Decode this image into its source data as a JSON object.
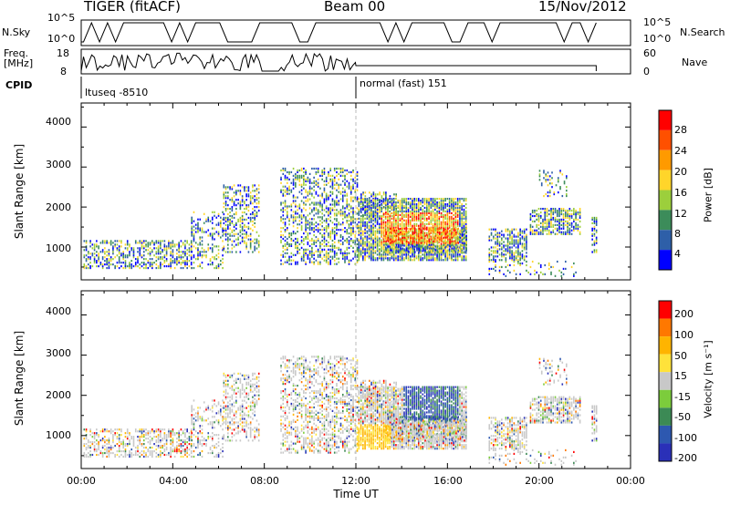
{
  "header": {
    "radar": "TIGER (fitACF)",
    "beam": "Beam 00",
    "date": "15/Nov/2012"
  },
  "top_panels": {
    "nsky_label": "N.Sky",
    "nsky_ticks": [
      "10^5",
      "10^0"
    ],
    "nsearch_label": "N.Search",
    "nsearch_ticks": [
      "10^5",
      "10^0"
    ],
    "freq_label_1": "Freq.",
    "freq_label_2": "[MHz]",
    "freq_ticks": [
      "18",
      "8"
    ],
    "nave_label": "Nave",
    "nave_ticks": [
      "60",
      "0"
    ],
    "cpid_label": "CPID",
    "cpid_segments": [
      {
        "label": "ltuseq -8510",
        "start_hour": 0,
        "end_hour": 12
      },
      {
        "label": "normal (fast) 151",
        "start_hour": 12,
        "end_hour": 24
      }
    ]
  },
  "colorbars": {
    "power": {
      "label": "Power [dB]",
      "ticks": [
        "28",
        "24",
        "20",
        "16",
        "12",
        "8",
        "4"
      ],
      "colors": [
        "#0000ff",
        "#2e5fa8",
        "#3c8c5a",
        "#9ccf3c",
        "#ffd52a",
        "#ff9a00",
        "#ff5000",
        "#ff0000"
      ]
    },
    "velocity": {
      "label": "Velocity [m s⁻¹]",
      "ticks": [
        "200",
        "100",
        "50",
        "15",
        "-15",
        "-50",
        "-100",
        "-200"
      ],
      "colors": [
        "#2a30b8",
        "#2d58b0",
        "#3c8a55",
        "#7ccc3c",
        "#c8c8c8",
        "#ffe23a",
        "#ffb400",
        "#ff7800",
        "#ff0000"
      ]
    }
  },
  "chart_data": [
    {
      "type": "heatmap",
      "name": "power",
      "ylabel": "Slant Range [km]",
      "ylim": [
        180,
        4600
      ],
      "yticks": [
        "4000",
        "3000",
        "2000",
        "1000"
      ],
      "xlim": [
        0,
        24
      ],
      "vertical_marker_hour": 12,
      "grid": false
    },
    {
      "type": "heatmap",
      "name": "velocity",
      "ylabel": "Slant Range [km]",
      "ylim": [
        180,
        4600
      ],
      "yticks": [
        "4000",
        "3000",
        "2000",
        "1000"
      ],
      "xlim": [
        0,
        24
      ],
      "vertical_marker_hour": 12,
      "grid": false,
      "xlabel": "Time UT",
      "xticks": [
        "00:00",
        "04:00",
        "08:00",
        "12:00",
        "16:00",
        "20:00",
        "00:00"
      ]
    }
  ]
}
